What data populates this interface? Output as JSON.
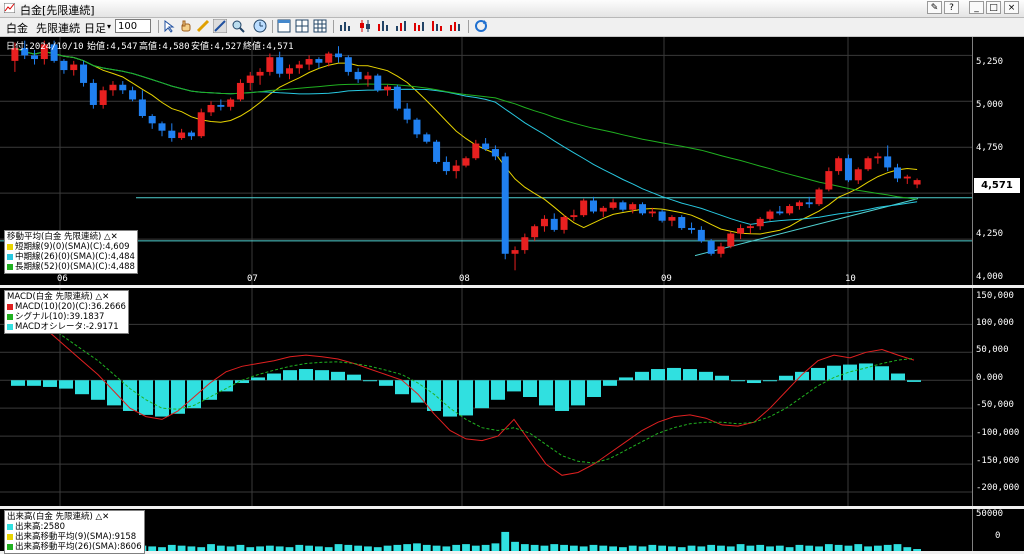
{
  "window": {
    "title": "白金[先限連続]",
    "buttons": [
      "≡",
      "?",
      "_",
      "□",
      "×"
    ]
  },
  "toolbar": {
    "instrument": "白金",
    "contract": "先限連続",
    "period": "日足",
    "bars": "100"
  },
  "info": {
    "date": "日付:2024/10/10",
    "open": "始値:4,547",
    "high": "高値:4,580",
    "low": "安値:4,527",
    "close": "終値:4,571"
  },
  "price_axis": {
    "ticks": [
      "5,250",
      "5,000",
      "4,750",
      "4,250",
      "4,000"
    ],
    "current": "4,571"
  },
  "x_axis": {
    "months": [
      "06",
      "07",
      "08",
      "09",
      "10"
    ]
  },
  "ma_legend": {
    "title": "移動平均(白金 先限連続)",
    "items": [
      {
        "label": "短期線(9)(0)(SMA)(C):4,609",
        "color": "#e8d400"
      },
      {
        "label": "中期線(26)(0)(SMA)(C):4,484",
        "color": "#28c8e0"
      },
      {
        "label": "長期線(52)(0)(SMA)(C):4,488",
        "color": "#20b020"
      }
    ]
  },
  "macd_legend": {
    "title": "MACD(白金 先限連続)",
    "items": [
      {
        "label": "MACD(10)(20)(C):36.2666",
        "color": "#e02020"
      },
      {
        "label": "シグナル(10):39.1837",
        "color": "#20b020"
      },
      {
        "label": "MACDオシレータ:-2.9171",
        "color": "#30e0e0"
      }
    ]
  },
  "macd_axis": {
    "ticks": [
      "150,000",
      "100,000",
      "50,000",
      "0.000",
      "-50,000",
      "-100,000",
      "-150,000",
      "-200,000"
    ]
  },
  "volume_legend": {
    "title": "出来高(白金 先限連続)",
    "items": [
      {
        "label": "出来高:2580",
        "color": "#30e0e0"
      },
      {
        "label": "出来高移動平均(9)(SMA):9158",
        "color": "#e8d400"
      },
      {
        "label": "出来高移動平均(26)(SMA):8606",
        "color": "#20b020"
      }
    ]
  },
  "volume_axis": {
    "ticks": [
      "50000",
      "0"
    ]
  },
  "chart_data": [
    {
      "type": "candlestick",
      "title": "白金[先限連続] 日足",
      "x": [
        "06",
        "07",
        "08",
        "09",
        "10"
      ],
      "ylim": [
        4000,
        5350
      ],
      "candles": [
        [
          5220,
          5320,
          5160,
          5290
        ],
        [
          5290,
          5330,
          5230,
          5250
        ],
        [
          5250,
          5280,
          5200,
          5230
        ],
        [
          5230,
          5330,
          5200,
          5310
        ],
        [
          5310,
          5330,
          5210,
          5220
        ],
        [
          5220,
          5230,
          5150,
          5170
        ],
        [
          5170,
          5220,
          5140,
          5200
        ],
        [
          5200,
          5220,
          5080,
          5100
        ],
        [
          5100,
          5120,
          4960,
          4980
        ],
        [
          4980,
          5080,
          4960,
          5060
        ],
        [
          5060,
          5110,
          5030,
          5090
        ],
        [
          5090,
          5110,
          5040,
          5060
        ],
        [
          5060,
          5080,
          5000,
          5010
        ],
        [
          5010,
          5060,
          4910,
          4920
        ],
        [
          4920,
          4930,
          4850,
          4880
        ],
        [
          4880,
          4890,
          4810,
          4840
        ],
        [
          4840,
          4880,
          4780,
          4800
        ],
        [
          4800,
          4850,
          4790,
          4830
        ],
        [
          4830,
          4840,
          4790,
          4810
        ],
        [
          4810,
          4960,
          4800,
          4940
        ],
        [
          4940,
          5000,
          4920,
          4980
        ],
        [
          4980,
          5010,
          4950,
          4970
        ],
        [
          4970,
          5020,
          4950,
          5010
        ],
        [
          5010,
          5120,
          5000,
          5100
        ],
        [
          5100,
          5160,
          5060,
          5140
        ],
        [
          5140,
          5180,
          5090,
          5160
        ],
        [
          5160,
          5260,
          5140,
          5240
        ],
        [
          5240,
          5270,
          5130,
          5150
        ],
        [
          5150,
          5200,
          5120,
          5180
        ],
        [
          5180,
          5220,
          5150,
          5200
        ],
        [
          5200,
          5250,
          5170,
          5230
        ],
        [
          5230,
          5240,
          5180,
          5210
        ],
        [
          5210,
          5270,
          5190,
          5260
        ],
        [
          5260,
          5300,
          5210,
          5240
        ],
        [
          5240,
          5250,
          5140,
          5160
        ],
        [
          5160,
          5180,
          5100,
          5120
        ],
        [
          5120,
          5160,
          5080,
          5140
        ],
        [
          5140,
          5150,
          5050,
          5060
        ],
        [
          5060,
          5090,
          5030,
          5080
        ],
        [
          5080,
          5090,
          4950,
          4960
        ],
        [
          4960,
          4990,
          4880,
          4900
        ],
        [
          4900,
          4910,
          4800,
          4820
        ],
        [
          4820,
          4830,
          4770,
          4780
        ],
        [
          4780,
          4790,
          4660,
          4670
        ],
        [
          4670,
          4700,
          4600,
          4620
        ],
        [
          4620,
          4680,
          4580,
          4650
        ],
        [
          4650,
          4700,
          4640,
          4690
        ],
        [
          4690,
          4790,
          4680,
          4770
        ],
        [
          4770,
          4800,
          4730,
          4740
        ],
        [
          4740,
          4760,
          4680,
          4700
        ],
        [
          4700,
          4720,
          4140,
          4170
        ],
        [
          4170,
          4210,
          4080,
          4190
        ],
        [
          4190,
          4280,
          4170,
          4260
        ],
        [
          4260,
          4330,
          4240,
          4320
        ],
        [
          4320,
          4380,
          4290,
          4360
        ],
        [
          4360,
          4390,
          4290,
          4300
        ],
        [
          4300,
          4380,
          4280,
          4370
        ],
        [
          4370,
          4410,
          4350,
          4380
        ],
        [
          4380,
          4470,
          4370,
          4460
        ],
        [
          4460,
          4480,
          4390,
          4400
        ],
        [
          4400,
          4430,
          4370,
          4420
        ],
        [
          4420,
          4470,
          4410,
          4450
        ],
        [
          4450,
          4460,
          4400,
          4410
        ],
        [
          4410,
          4450,
          4390,
          4440
        ],
        [
          4440,
          4450,
          4380,
          4390
        ],
        [
          4390,
          4420,
          4370,
          4400
        ],
        [
          4400,
          4410,
          4340,
          4350
        ],
        [
          4350,
          4380,
          4320,
          4370
        ],
        [
          4370,
          4380,
          4300,
          4310
        ],
        [
          4310,
          4340,
          4280,
          4300
        ],
        [
          4300,
          4320,
          4230,
          4240
        ],
        [
          4240,
          4250,
          4160,
          4170
        ],
        [
          4170,
          4230,
          4150,
          4210
        ],
        [
          4210,
          4290,
          4200,
          4280
        ],
        [
          4280,
          4330,
          4250,
          4310
        ],
        [
          4310,
          4330,
          4280,
          4320
        ],
        [
          4320,
          4370,
          4300,
          4360
        ],
        [
          4360,
          4410,
          4350,
          4400
        ],
        [
          4400,
          4430,
          4380,
          4390
        ],
        [
          4390,
          4440,
          4380,
          4430
        ],
        [
          4430,
          4460,
          4410,
          4450
        ],
        [
          4450,
          4480,
          4420,
          4440
        ],
        [
          4440,
          4530,
          4430,
          4520
        ],
        [
          4520,
          4640,
          4510,
          4620
        ],
        [
          4620,
          4700,
          4600,
          4690
        ],
        [
          4690,
          4710,
          4560,
          4570
        ],
        [
          4570,
          4640,
          4550,
          4630
        ],
        [
          4630,
          4700,
          4620,
          4690
        ],
        [
          4690,
          4720,
          4660,
          4700
        ],
        [
          4700,
          4760,
          4620,
          4640
        ],
        [
          4640,
          4660,
          4560,
          4580
        ],
        [
          4580,
          4600,
          4550,
          4590
        ],
        [
          4547,
          4580,
          4527,
          4571
        ]
      ]
    },
    {
      "type": "line",
      "title": "MACD(白金 先限連続)",
      "ylim": [
        -225000,
        165000
      ],
      "series": [
        {
          "name": "MACD(10)(20)(C)",
          "values": [
            110000,
            100000,
            85000,
            60000,
            35000,
            10000,
            -20000,
            -50000,
            -65000,
            -70000,
            -55000,
            -30000,
            -5000,
            15000,
            25000,
            30000,
            35000,
            42000,
            45000,
            42000,
            38000,
            30000,
            20000,
            10000,
            0,
            -25000,
            -60000,
            -90000,
            -105000,
            -108000,
            -100000,
            -70000,
            -110000,
            -150000,
            -170000,
            -165000,
            -150000,
            -130000,
            -110000,
            -90000,
            -75000,
            -65000,
            -62000,
            -68000,
            -80000,
            -82000,
            -75000,
            -50000,
            -20000,
            10000,
            35000,
            45000,
            40000,
            50000,
            55000,
            45000,
            36000
          ]
        },
        {
          "name": "シグナル(10)",
          "values": [
            120000,
            110000,
            95000,
            75000,
            55000,
            35000,
            10000,
            -15000,
            -35000,
            -50000,
            -52000,
            -45000,
            -30000,
            -15000,
            0,
            10000,
            18000,
            25000,
            30000,
            32000,
            33000,
            30000,
            25000,
            18000,
            10000,
            -5000,
            -25000,
            -50000,
            -70000,
            -85000,
            -90000,
            -85000,
            -95000,
            -115000,
            -135000,
            -145000,
            -148000,
            -140000,
            -125000,
            -110000,
            -95000,
            -85000,
            -78000,
            -75000,
            -75000,
            -78000,
            -75000,
            -65000,
            -50000,
            -30000,
            -10000,
            5000,
            15000,
            22000,
            30000,
            36000,
            39000
          ]
        },
        {
          "name": "MACDオシレータ",
          "values": [
            -10000,
            -10000,
            -12000,
            -15000,
            -25000,
            -35000,
            -45000,
            -55000,
            -62000,
            -65000,
            -60000,
            -50000,
            -35000,
            -20000,
            -5000,
            5000,
            12000,
            18000,
            20000,
            18000,
            15000,
            10000,
            0,
            -10000,
            -25000,
            -40000,
            -55000,
            -65000,
            -63000,
            -50000,
            -35000,
            -20000,
            -30000,
            -45000,
            -55000,
            -45000,
            -30000,
            -10000,
            5000,
            15000,
            20000,
            22000,
            20000,
            15000,
            8000,
            0,
            -5000,
            0,
            8000,
            15000,
            22000,
            26000,
            28000,
            30000,
            25000,
            12000,
            -3000
          ]
        }
      ]
    },
    {
      "type": "bar",
      "title": "出来高(白金 先限連続)",
      "ylim": [
        0,
        55000
      ],
      "values": [
        6000,
        5000,
        4000,
        7000,
        5000,
        6000,
        5000,
        8000,
        6000,
        7000,
        5000,
        6000,
        9000,
        7000,
        6000,
        5000,
        8000,
        7000,
        6000,
        5000,
        9000,
        7000,
        6000,
        8000,
        5000,
        6000,
        7000,
        6000,
        5000,
        8000,
        7000,
        6000,
        5000,
        9000,
        8000,
        7000,
        6000,
        5000,
        7000,
        8000,
        9000,
        10000,
        8000,
        7000,
        6000,
        8000,
        9000,
        7000,
        8000,
        10000,
        25000,
        12000,
        9000,
        8000,
        7000,
        9000,
        8000,
        7000,
        6000,
        8000,
        7000,
        6000,
        5000,
        7000,
        6000,
        8000,
        7000,
        6000,
        5000,
        7000,
        6000,
        8000,
        7000,
        6000,
        9000,
        7000,
        8000,
        6000,
        7000,
        5000,
        8000,
        7000,
        6000,
        9000,
        8000,
        7000,
        9000,
        6000,
        7000,
        8000,
        9000,
        5000,
        2580
      ]
    }
  ]
}
